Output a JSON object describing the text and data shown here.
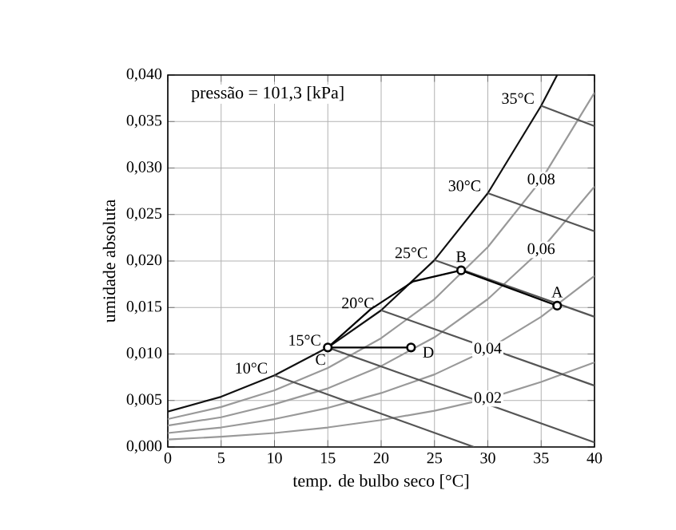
{
  "chart_data": {
    "type": "line",
    "xlabel": "temp. de bulbo seco [°C]",
    "ylabel": "umidade absoluta",
    "xlim": [
      0,
      40
    ],
    "xticks": [
      0,
      5,
      10,
      15,
      20,
      25,
      30,
      35,
      40
    ],
    "ylim": [
      0,
      0.04
    ],
    "yticks": [
      {
        "value": 0,
        "label": "0,000"
      },
      {
        "value": 0.005,
        "label": "0,005"
      },
      {
        "value": 0.01,
        "label": "0,010"
      },
      {
        "value": 0.015,
        "label": "0,015"
      },
      {
        "value": 0.02,
        "label": "0,020"
      },
      {
        "value": 0.025,
        "label": "0,025"
      },
      {
        "value": 0.03,
        "label": "0,030"
      },
      {
        "value": 0.035,
        "label": "0,035"
      },
      {
        "value": 0.04,
        "label": "0,040"
      }
    ],
    "grid": true,
    "marker": "none",
    "line_style": "solid",
    "series": [
      {
        "color": "#111111",
        "x": [
          0,
          5,
          10,
          15,
          20,
          25,
          30,
          35,
          36.5
        ],
        "values": [
          0.0038,
          0.0054,
          0.0077,
          0.0107,
          0.0147,
          0.0201,
          0.0273,
          0.0367,
          0.04
        ]
      },
      {
        "color": "#999999",
        "x": [
          0,
          5,
          10,
          15,
          20,
          25,
          30,
          35,
          40
        ],
        "values": [
          0.003,
          0.0043,
          0.0061,
          0.0085,
          0.0117,
          0.0159,
          0.0215,
          0.0287,
          0.0381
        ]
      },
      {
        "color": "#999999",
        "x": [
          0,
          5,
          10,
          15,
          20,
          25,
          30,
          35,
          40
        ],
        "values": [
          0.0023,
          0.0032,
          0.0046,
          0.0063,
          0.0087,
          0.0118,
          0.0159,
          0.0212,
          0.028
        ]
      },
      {
        "color": "#999999",
        "x": [
          0,
          5,
          10,
          15,
          20,
          25,
          30,
          35,
          40
        ],
        "values": [
          0.0015,
          0.0021,
          0.003,
          0.0042,
          0.0058,
          0.0078,
          0.0105,
          0.014,
          0.0184
        ]
      },
      {
        "color": "#999999",
        "x": [
          0,
          5,
          10,
          15,
          20,
          25,
          30,
          35,
          40
        ],
        "values": [
          0.0008,
          0.0011,
          0.0015,
          0.0021,
          0.0029,
          0.0039,
          0.0052,
          0.007,
          0.0091
        ]
      },
      {
        "color": "#555555",
        "x": [
          10,
          28.7
        ],
        "values": [
          0.0077,
          0
        ]
      },
      {
        "color": "#555555",
        "x": [
          15,
          40
        ],
        "values": [
          0.0107,
          0.0005
        ]
      },
      {
        "color": "#555555",
        "x": [
          20,
          40
        ],
        "values": [
          0.0147,
          0.0066
        ]
      },
      {
        "color": "#555555",
        "x": [
          25,
          40
        ],
        "values": [
          0.0201,
          0.014
        ]
      },
      {
        "color": "#555555",
        "x": [
          30,
          40
        ],
        "values": [
          0.0273,
          0.0232
        ]
      },
      {
        "color": "#555555",
        "x": [
          35,
          40
        ],
        "values": [
          0.0367,
          0.0345
        ]
      },
      {
        "color": "#000000",
        "x": [
          36.5,
          27.5
        ],
        "values": [
          0.0152,
          0.019
        ]
      },
      {
        "color": "#000000",
        "x": [
          27.5,
          23,
          19,
          15
        ],
        "values": [
          0.019,
          0.0178,
          0.0148,
          0.0107
        ]
      },
      {
        "color": "#000000",
        "x": [
          15,
          22.8
        ],
        "values": [
          0.0107,
          0.0107
        ]
      },
      {
        "type": "scatter",
        "marker": "circle",
        "color": "#000000",
        "x": [
          36.5,
          27.5,
          15,
          22.8
        ],
        "values": [
          0.0152,
          0.019,
          0.0107,
          0.0107
        ]
      }
    ],
    "annotations": [
      "pressão = 101,3 [kPa]",
      {
        "text": "35°C",
        "x": 35,
        "y": 0.0367
      },
      {
        "text": "30°C",
        "x": 30,
        "y": 0.0273
      },
      {
        "text": "25°C",
        "x": 25,
        "y": 0.0201
      },
      {
        "text": "20°C",
        "x": 20,
        "y": 0.0147
      },
      {
        "text": "15°C",
        "x": 15,
        "y": 0.0107
      },
      {
        "text": "10°C",
        "x": 10,
        "y": 0.0077
      },
      {
        "text": "0,08",
        "x": 35,
        "y": 0.0287
      },
      {
        "text": "0,06",
        "x": 35,
        "y": 0.0212
      },
      {
        "text": "0,04",
        "x": 30,
        "y": 0.0105
      },
      {
        "text": "0,02",
        "x": 30,
        "y": 0.0052
      },
      {
        "text": "A",
        "x": 36.5,
        "y": 0.0152
      },
      {
        "text": "B",
        "x": 27.5,
        "y": 0.019
      },
      {
        "text": "C",
        "x": 15,
        "y": 0.0107
      },
      {
        "text": "D",
        "x": 22.8,
        "y": 0.0107
      }
    ]
  }
}
